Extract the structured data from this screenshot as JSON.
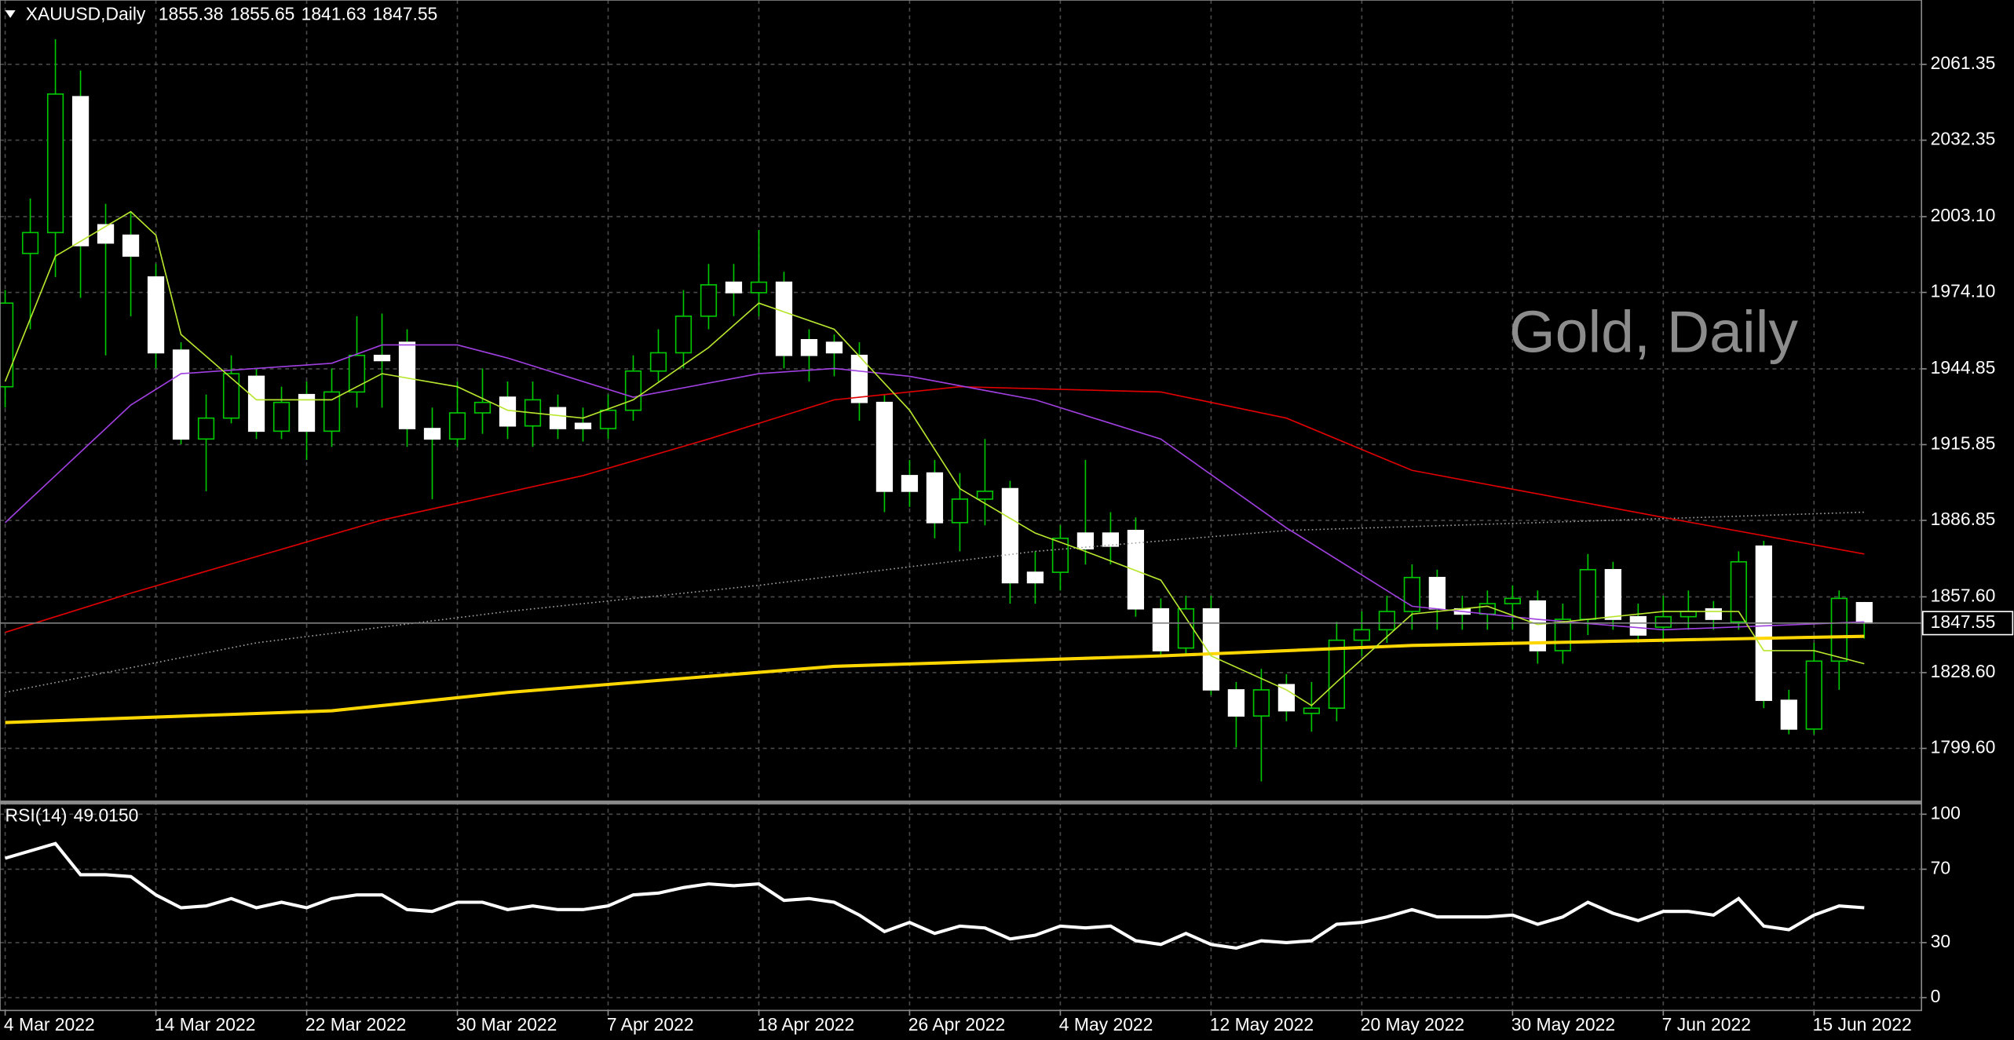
{
  "chart_data": [
    {
      "type": "candlestick",
      "title": "XAUUSD,Daily",
      "watermark": "Gold, Daily",
      "categories": [
        "4 Mar 2022",
        null,
        null,
        null,
        null,
        null,
        "14 Mar 2022",
        null,
        null,
        null,
        null,
        null,
        "22 Mar 2022",
        null,
        null,
        null,
        null,
        null,
        "30 Mar 2022",
        null,
        null,
        null,
        null,
        null,
        "7 Apr 2022",
        null,
        null,
        null,
        null,
        null,
        "18 Apr 2022",
        null,
        null,
        null,
        null,
        null,
        "26 Apr 2022",
        null,
        null,
        null,
        null,
        null,
        "4 May 2022",
        null,
        null,
        null,
        null,
        null,
        "12 May 2022",
        null,
        null,
        null,
        null,
        null,
        "20 May 2022",
        null,
        null,
        null,
        null,
        null,
        "30 May 2022",
        null,
        null,
        null,
        null,
        null,
        "7 Jun 2022",
        null,
        null,
        null,
        null,
        null,
        "15 Jun 2022",
        null,
        null
      ],
      "open": [
        1938,
        1989,
        1997,
        2049,
        2000,
        1996,
        1980,
        1952,
        1918,
        1926,
        1942,
        1921,
        1935,
        1921,
        1936,
        1950,
        1955,
        1922,
        1918,
        1928,
        1934,
        1923,
        1930,
        1924,
        1922,
        1929,
        1944,
        1951,
        1965,
        1978,
        1974,
        1978,
        1956,
        1955,
        1950,
        1932,
        1904,
        1905,
        1886,
        1895,
        1899,
        1867,
        1867,
        1882,
        1882,
        1883,
        1853,
        1838,
        1853,
        1822,
        1812,
        1824,
        1813,
        1815,
        1841,
        1845,
        1852,
        1865,
        1853,
        1851,
        1855,
        1856,
        1837,
        1849,
        1868,
        1850,
        1846,
        1850,
        1853,
        1848,
        1877,
        1818,
        1807,
        1833,
        1855.38
      ],
      "high": [
        1975,
        2010,
        2071,
        2059,
        2008,
        2005,
        1985,
        1955,
        1935,
        1950,
        1945,
        1938,
        1940,
        1945,
        1965,
        1966,
        1960,
        1930,
        1940,
        1945,
        1940,
        1940,
        1935,
        1930,
        1935,
        1950,
        1960,
        1975,
        1985,
        1985,
        1998,
        1982,
        1960,
        1958,
        1955,
        1935,
        1910,
        1910,
        1905,
        1918,
        1902,
        1875,
        1885,
        1910,
        1890,
        1888,
        1857,
        1858,
        1858,
        1825,
        1830,
        1828,
        1825,
        1848,
        1852,
        1858,
        1870,
        1868,
        1858,
        1860,
        1862,
        1860,
        1855,
        1874,
        1871,
        1855,
        1858,
        1860,
        1856,
        1875,
        1879,
        1822,
        1840,
        1860,
        1855.65
      ],
      "low": [
        1930,
        1960,
        1980,
        1972,
        1950,
        1965,
        1945,
        1916,
        1898,
        1924,
        1918,
        1918,
        1910,
        1915,
        1930,
        1930,
        1915,
        1895,
        1915,
        1920,
        1918,
        1915,
        1918,
        1917,
        1918,
        1925,
        1940,
        1945,
        1960,
        1965,
        1965,
        1945,
        1940,
        1942,
        1925,
        1890,
        1892,
        1880,
        1875,
        1885,
        1855,
        1855,
        1860,
        1870,
        1870,
        1850,
        1835,
        1835,
        1820,
        1800,
        1787,
        1810,
        1806,
        1810,
        1835,
        1840,
        1845,
        1845,
        1845,
        1845,
        1845,
        1832,
        1832,
        1843,
        1845,
        1840,
        1840,
        1845,
        1845,
        1845,
        1815,
        1805,
        1805,
        1822,
        1841.63
      ],
      "close": [
        1970,
        1997,
        2050,
        1992,
        1993,
        1988,
        1951,
        1918,
        1926,
        1943,
        1921,
        1932,
        1921,
        1936,
        1950,
        1948,
        1922,
        1918,
        1928,
        1932,
        1923,
        1933,
        1922,
        1922,
        1929,
        1944,
        1951,
        1965,
        1977,
        1974,
        1978,
        1950,
        1950,
        1951,
        1932,
        1898,
        1898,
        1886,
        1895,
        1898,
        1863,
        1863,
        1880,
        1876,
        1877,
        1853,
        1837,
        1853,
        1822,
        1812,
        1822,
        1814,
        1815,
        1841,
        1845,
        1852,
        1865,
        1853,
        1851,
        1855,
        1857,
        1837,
        1849,
        1868,
        1849,
        1843,
        1850,
        1852,
        1849,
        1871,
        1818,
        1807,
        1833,
        1857,
        1847.55
      ],
      "up_color": "#000000",
      "down_color": "#ffffff",
      "wick_color": "#00c800",
      "ylim": [
        1779.4,
        2086
      ],
      "yticks": [
        2061.35,
        2032.35,
        {
          "value": 2003.1,
          "label": "2003.10"
        },
        {
          "value": 1974.1,
          "label": "1974.10"
        },
        1944.85,
        1915.85,
        1886.85,
        {
          "value": 1857.6,
          "label": "1857.60"
        },
        {
          "value": 1828.6,
          "label": "1828.60"
        },
        {
          "value": 1799.6,
          "label": "1799.60"
        }
      ],
      "grid": true,
      "last_price_line": true,
      "overlays": [
        {
          "color": "#ffd700",
          "style": "solid",
          "weight": "thick",
          "x": [
            0,
            13,
            20,
            33,
            46,
            56,
            66,
            74
          ],
          "values": [
            1809.5,
            1814,
            1821,
            1831,
            1835,
            1839,
            1841,
            1842.5
          ]
        },
        {
          "color": "#a0a0a0",
          "style": "dotted",
          "weight": "thin",
          "x": [
            0,
            10,
            20,
            30,
            41,
            51,
            61,
            74
          ],
          "values": [
            1821,
            1840,
            1852,
            1862,
            1875,
            1883,
            1886,
            1890
          ]
        },
        {
          "color": "#e00000",
          "style": "solid",
          "weight": "thin",
          "x": [
            0,
            5,
            10,
            15,
            23,
            28,
            33,
            38,
            46,
            51,
            56,
            61,
            66,
            74
          ],
          "values": [
            1844,
            1859,
            1873,
            1887,
            1904,
            1918,
            1933,
            1938,
            1936,
            1926,
            1906,
            1897,
            1888,
            1874
          ]
        },
        {
          "color": "#a040e0",
          "style": "solid",
          "weight": "thin",
          "x": [
            0,
            2,
            5,
            7,
            13,
            15,
            18,
            20,
            25,
            30,
            33,
            36,
            41,
            46,
            51,
            56,
            61,
            66,
            74
          ],
          "values": [
            1886,
            1904,
            1931,
            1943,
            1947,
            1954,
            1954,
            1949,
            1934,
            1943,
            1945,
            1942,
            1933,
            1918,
            1884,
            1854,
            1849,
            1845,
            1848
          ]
        },
        {
          "color": "#b8e62e",
          "style": "solid",
          "weight": "thin",
          "x": [
            0,
            2,
            5,
            6,
            7,
            10,
            13,
            15,
            18,
            20,
            23,
            25,
            28,
            30,
            33,
            36,
            38,
            41,
            43,
            46,
            48,
            51,
            52,
            53,
            56,
            59,
            61,
            64,
            66,
            69,
            70,
            72,
            74
          ],
          "values": [
            1940,
            1988,
            2005,
            1996,
            1958,
            1933,
            1933,
            1943,
            1938,
            1929,
            1926,
            1933,
            1953,
            1970,
            1960,
            1929,
            1899,
            1882,
            1875,
            1864,
            1835,
            1822,
            1816,
            1825,
            1851,
            1854,
            1847,
            1850,
            1852,
            1852,
            1837,
            1837,
            1832
          ]
        }
      ]
    },
    {
      "type": "line",
      "title": "RSI(14)",
      "last_value_label": "49.0150",
      "color": "#ffffff",
      "values": [
        76,
        80,
        84,
        67,
        67,
        66,
        56,
        49,
        50,
        54,
        49,
        52,
        49,
        54,
        56,
        56,
        48,
        47,
        52,
        52,
        48,
        50,
        48,
        48,
        50,
        56,
        57,
        60,
        62,
        61,
        62,
        53,
        54,
        52,
        45,
        36,
        41,
        35,
        39,
        38,
        32,
        34,
        39,
        38,
        39,
        31,
        29,
        35,
        29,
        27,
        31,
        30,
        31,
        40,
        41,
        44,
        48,
        44,
        44,
        44,
        45,
        40,
        44,
        52,
        46,
        42,
        47,
        47,
        45,
        54,
        39,
        37,
        45,
        50,
        49.015
      ],
      "ylim": [
        -7,
        105
      ],
      "yticks": [
        100,
        70,
        30,
        0
      ],
      "grid": true
    }
  ]
}
